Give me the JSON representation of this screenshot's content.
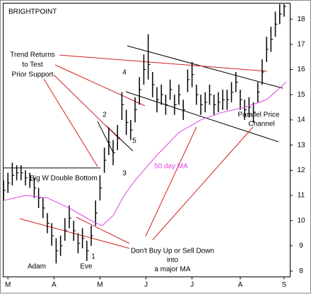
{
  "chart_data": {
    "type": "ohlc",
    "title": "BRIGHTPOINT",
    "x": [
      0,
      2,
      4,
      6,
      8,
      10,
      12,
      14,
      16,
      18,
      20,
      22,
      24,
      26,
      28,
      30,
      32,
      34,
      36,
      38,
      40,
      42,
      44,
      46,
      48,
      50,
      52,
      54,
      56,
      58,
      60,
      62,
      64,
      66,
      68,
      70,
      72,
      74,
      76,
      78,
      80,
      82,
      84,
      86,
      88,
      90,
      92,
      94,
      96,
      98,
      100,
      102,
      104,
      106,
      108,
      110,
      112,
      114,
      116,
      118,
      120,
      122,
      124,
      126,
      128
    ],
    "high": [
      11.6,
      11.9,
      12.3,
      12.2,
      12.2,
      12.0,
      11.9,
      11.7,
      11.3,
      10.9,
      10.3,
      9.9,
      9.3,
      9.4,
      10.1,
      10.6,
      10.0,
      9.5,
      9.7,
      9.2,
      9.8,
      10.8,
      11.8,
      12.9,
      13.7,
      13.2,
      13.8,
      15.1,
      14.4,
      14.0,
      14.9,
      15.7,
      16.6,
      17.4,
      15.9,
      15.3,
      15.4,
      15.0,
      15.6,
      15.0,
      15.4,
      14.8,
      16.0,
      16.3,
      15.4,
      15.0,
      15.1,
      15.4,
      15.0,
      15.1,
      15.2,
      15.2,
      15.5,
      15.9,
      15.2,
      14.8,
      14.9,
      14.7,
      15.5,
      16.4,
      17.3,
      17.7,
      18.3,
      18.6,
      18.6
    ],
    "low": [
      10.8,
      11.1,
      11.4,
      11.6,
      11.6,
      11.4,
      11.3,
      10.9,
      10.5,
      10.1,
      9.5,
      9.0,
      8.3,
      8.6,
      9.2,
      9.7,
      9.2,
      8.7,
      8.9,
      8.4,
      9.0,
      9.8,
      10.8,
      11.9,
      12.6,
      12.2,
      12.8,
      14.0,
      13.4,
      13.2,
      13.9,
      14.6,
      15.4,
      15.6,
      14.9,
      14.3,
      14.6,
      14.2,
      14.8,
      14.2,
      14.6,
      14.0,
      15.1,
      15.3,
      14.6,
      14.2,
      14.3,
      14.6,
      14.2,
      14.3,
      14.4,
      14.4,
      14.7,
      15.1,
      14.4,
      14.0,
      14.1,
      13.9,
      14.7,
      15.4,
      16.3,
      16.7,
      17.3,
      17.8,
      18.1
    ],
    "close": [
      11.2,
      11.5,
      11.8,
      11.9,
      11.9,
      11.7,
      11.6,
      11.3,
      10.9,
      10.5,
      9.9,
      9.4,
      8.8,
      9.0,
      9.6,
      10.1,
      9.6,
      9.1,
      9.3,
      8.8,
      9.4,
      10.3,
      11.3,
      12.4,
      13.1,
      12.7,
      13.3,
      14.6,
      13.9,
      13.6,
      14.4,
      15.2,
      16.0,
      16.2,
      15.4,
      14.8,
      15.0,
      14.6,
      15.2,
      14.6,
      15.0,
      14.4,
      15.6,
      15.8,
      15.0,
      14.6,
      14.7,
      15.0,
      14.6,
      14.7,
      14.8,
      14.8,
      15.1,
      15.5,
      14.8,
      14.4,
      14.5,
      14.3,
      15.1,
      15.9,
      16.8,
      17.2,
      17.8,
      18.2,
      18.5
    ],
    "color": "#000000",
    "ma": {
      "name": "50 day MA",
      "color": "#e040e0",
      "x": [
        0,
        10,
        20,
        30,
        40,
        45,
        50,
        55,
        60,
        65,
        70,
        80,
        90,
        100,
        110,
        120,
        129
      ],
      "values": [
        10.8,
        11.0,
        10.9,
        10.5,
        10.0,
        9.8,
        10.2,
        11.0,
        11.6,
        12.1,
        12.6,
        13.5,
        14.0,
        14.3,
        14.5,
        14.8,
        15.5
      ]
    },
    "xlim": [
      0,
      130.6
    ],
    "ylim": [
      7.78,
      18.62
    ],
    "xticks": [
      {
        "value": 2,
        "label": "M"
      },
      {
        "value": 23,
        "label": "A"
      },
      {
        "value": 44,
        "label": "M"
      },
      {
        "value": 65,
        "label": "J"
      },
      {
        "value": 86,
        "label": "J"
      },
      {
        "value": 108,
        "label": "A"
      },
      {
        "value": 128,
        "label": "S"
      }
    ],
    "yticks": [
      8,
      9,
      10,
      11,
      12,
      13,
      14,
      15,
      16,
      17,
      18
    ],
    "annotations": {
      "trend": [
        "Trend Returns",
        "to Test",
        "Prior Support"
      ],
      "w": "Big W Double Bottom",
      "adam": "Adam",
      "eve": "Eve",
      "points": [
        "1",
        "2",
        "3",
        "4",
        "5"
      ],
      "channel": [
        "Parallel Price",
        "Channel"
      ],
      "dont": [
        "Don't Buy Up or Sell Down",
        "into",
        "a major MA"
      ]
    }
  }
}
